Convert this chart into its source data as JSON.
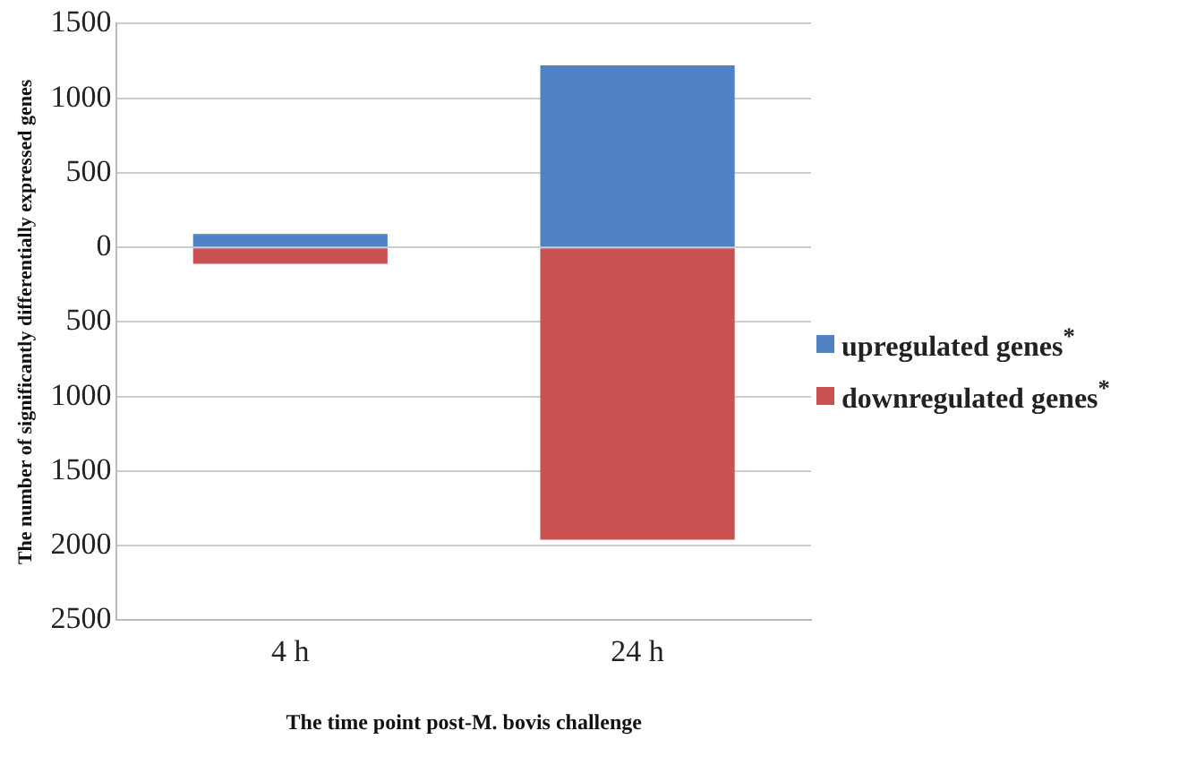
{
  "chart_data": {
    "type": "bar",
    "stacked": true,
    "xlabel": "The time point post-M. bovis challenge",
    "ylabel": "The number of significantly differentially expressed genes",
    "categories": [
      "4 h",
      "24 h"
    ],
    "series": [
      {
        "name": "upregulated genes$^{*}$",
        "color": "#4f81c4",
        "values": [
          90,
          1220
        ]
      },
      {
        "name": "downregulated genes$^{*}$",
        "color": "#c95151",
        "values": [
          -110,
          -1960
        ]
      }
    ],
    "ylim": [
      -2500,
      1500
    ],
    "yticks": [
      1500,
      1000,
      500,
      0,
      {
        "value": -500,
        "label": "500"
      },
      {
        "value": -1000,
        "label": "1000"
      },
      {
        "value": -1500,
        "label": "1500"
      },
      {
        "value": -2000,
        "label": "2000"
      },
      {
        "value": -2500,
        "label": "2500"
      }
    ],
    "grid": "y",
    "legend": "right"
  }
}
